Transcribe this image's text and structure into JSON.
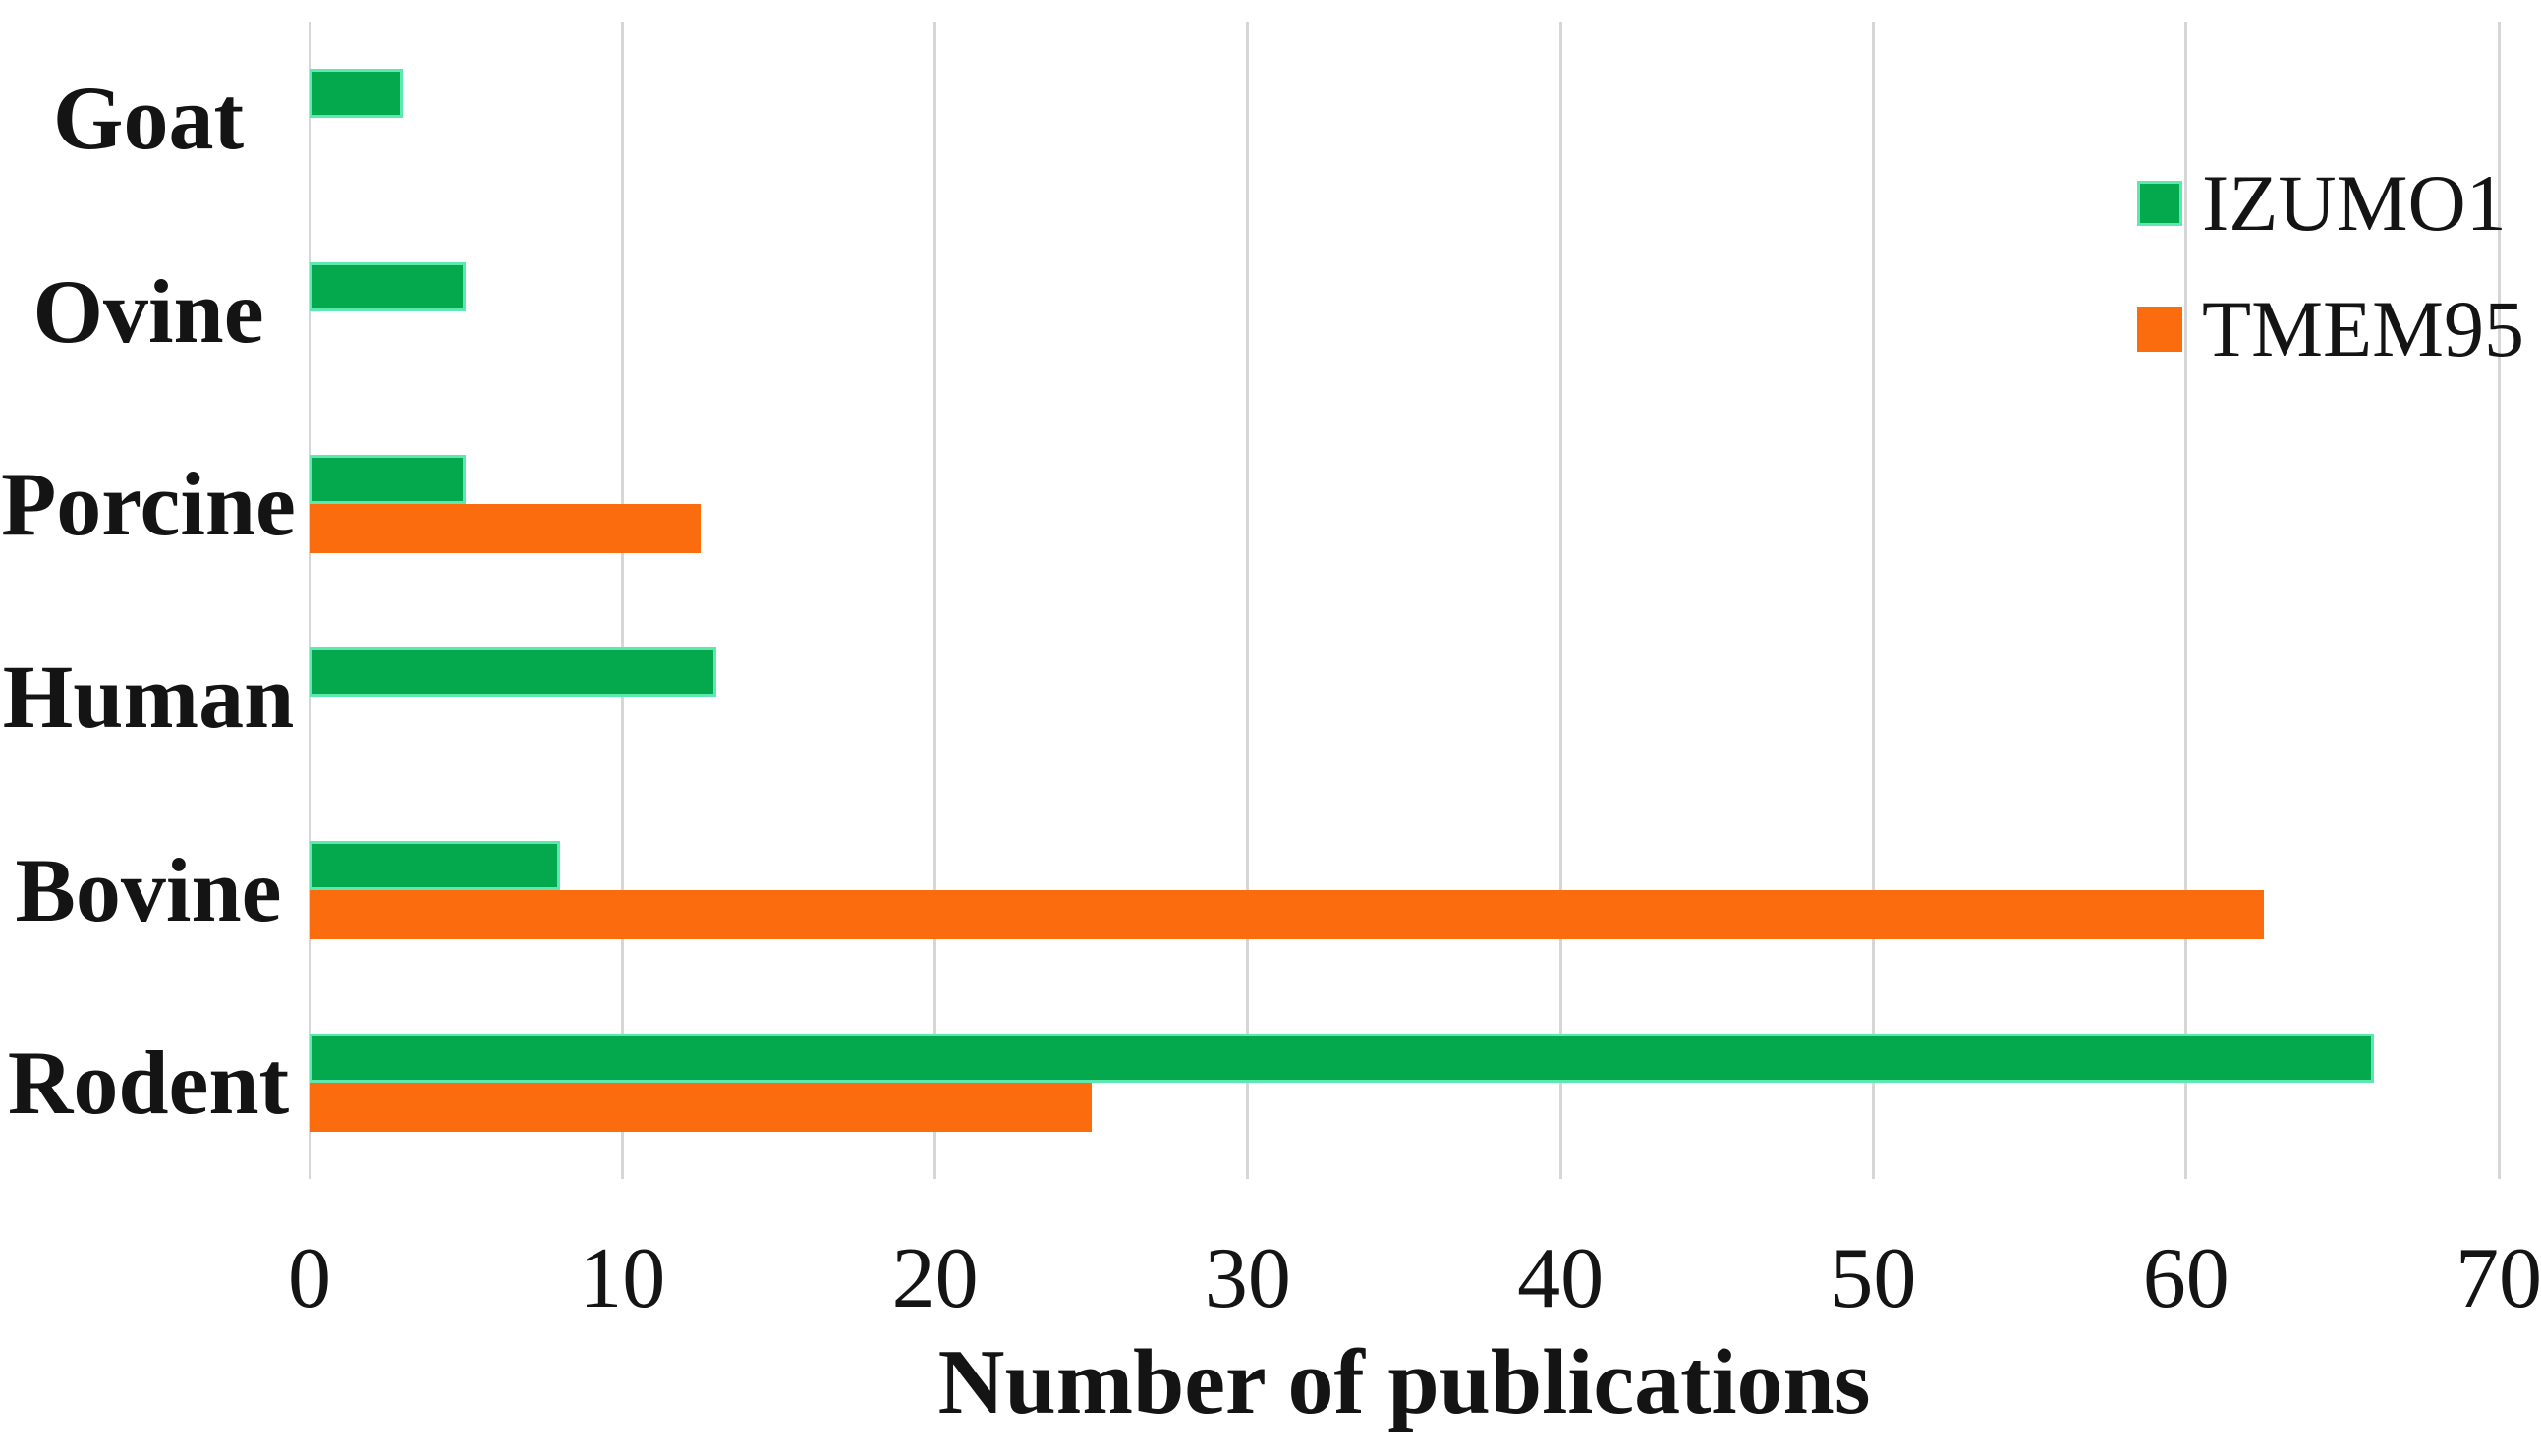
{
  "figure": {
    "background": "#ffffff",
    "text_color": "#141414"
  },
  "chart_data": {
    "type": "bar",
    "orientation": "horizontal",
    "title": "",
    "xlabel": "Number of publications",
    "ylabel": "",
    "categories": [
      "Goat",
      "Ovine",
      "Porcine",
      "Human",
      "Bovine",
      "Rodent"
    ],
    "series": [
      {
        "name": "IZUMO1",
        "color": "#04a94d",
        "edge_color": "#5ce8ae",
        "values": [
          3,
          5,
          5,
          13,
          8,
          66
        ]
      },
      {
        "name": "TMEM95",
        "color": "#fb6c0e",
        "edge_color": null,
        "values": [
          0,
          0,
          12.5,
          0,
          62.5,
          25
        ]
      }
    ],
    "xlim": [
      0,
      70
    ],
    "x_ticks": [
      0,
      10,
      20,
      30,
      40,
      50,
      60,
      70
    ],
    "grid": "vertical",
    "gridline_color": "#d6d6d6",
    "legend_position": "top-right",
    "legend_entries": [
      "IZUMO1",
      "TMEM95"
    ]
  }
}
